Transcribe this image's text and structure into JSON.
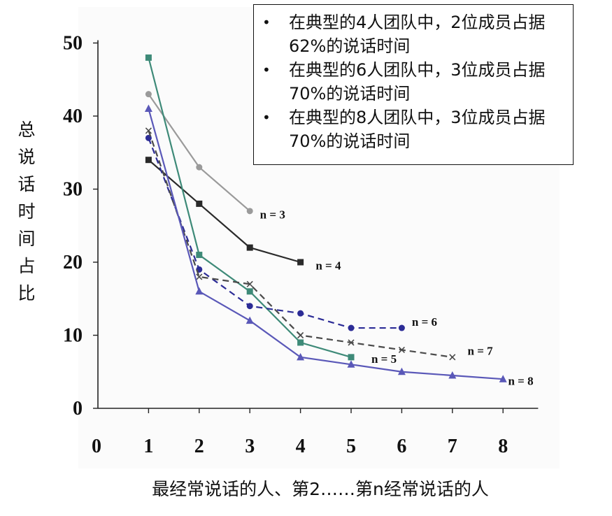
{
  "chart_data": {
    "type": "line",
    "xlabel": "最经常说话的人、第2……第n经常说话的人",
    "ylabel": "总说话时间占比",
    "x_ticks": [
      "0",
      "1",
      "2",
      "3",
      "4",
      "5",
      "6",
      "7",
      "8"
    ],
    "y_ticks": [
      "0",
      "10",
      "20",
      "30",
      "40",
      "50"
    ],
    "xlim": [
      0,
      8.5
    ],
    "ylim": [
      0,
      50
    ],
    "grid": false,
    "series": [
      {
        "name": "n = 3",
        "x": [
          1,
          2,
          3
        ],
        "y": [
          43,
          33,
          27
        ],
        "color": "#9a9a9a",
        "marker": "circle",
        "dash": "solid"
      },
      {
        "name": "n = 4",
        "x": [
          1,
          2,
          3,
          4
        ],
        "y": [
          34,
          28,
          22,
          20
        ],
        "color": "#2a2a2a",
        "marker": "square",
        "dash": "solid"
      },
      {
        "name": "n = 5",
        "x": [
          1,
          2,
          3,
          4,
          5
        ],
        "y": [
          48,
          21,
          16,
          9,
          7
        ],
        "color": "#3e8a78",
        "marker": "square",
        "dash": "solid"
      },
      {
        "name": "n = 6",
        "x": [
          1,
          2,
          3,
          4,
          5,
          6
        ],
        "y": [
          37,
          19,
          14,
          13,
          11,
          11
        ],
        "color": "#2c2c96",
        "marker": "circle",
        "dash": "dashed"
      },
      {
        "name": "n = 7",
        "x": [
          1,
          2,
          3,
          4,
          5,
          6,
          7
        ],
        "y": [
          38,
          18,
          17,
          10,
          9,
          8,
          7
        ],
        "color": "#4a4a4a",
        "marker": "x",
        "dash": "dashed"
      },
      {
        "name": "n = 8",
        "x": [
          1,
          2,
          3,
          4,
          5,
          6,
          7,
          8
        ],
        "y": [
          41,
          16,
          12,
          7,
          6,
          5,
          4.5,
          4
        ],
        "color": "#5a58b8",
        "marker": "triangle",
        "dash": "solid"
      }
    ],
    "series_labels": [
      {
        "text": "n = 3",
        "x": 3.2,
        "y": 26
      },
      {
        "text": "n = 4",
        "x": 4.3,
        "y": 19
      },
      {
        "text": "n = 6",
        "x": 6.2,
        "y": 11.3
      },
      {
        "text": "n = 7",
        "x": 7.3,
        "y": 7.3
      },
      {
        "text": "n = 5",
        "x": 5.4,
        "y": 6.2
      },
      {
        "text": "n = 8",
        "x": 8.1,
        "y": 3.2
      }
    ],
    "legend_position": "top-right",
    "legend": [
      {
        "bullet": "•",
        "text": "在典型的4人团队中，2位成员占据62%的说话时间"
      },
      {
        "bullet": "•",
        "text": "在典型的6人团队中，3位成员占据70%的说话时间"
      },
      {
        "bullet": "•",
        "text": "在典型的8人团队中，3位成员占据70%的说话时间"
      }
    ]
  }
}
